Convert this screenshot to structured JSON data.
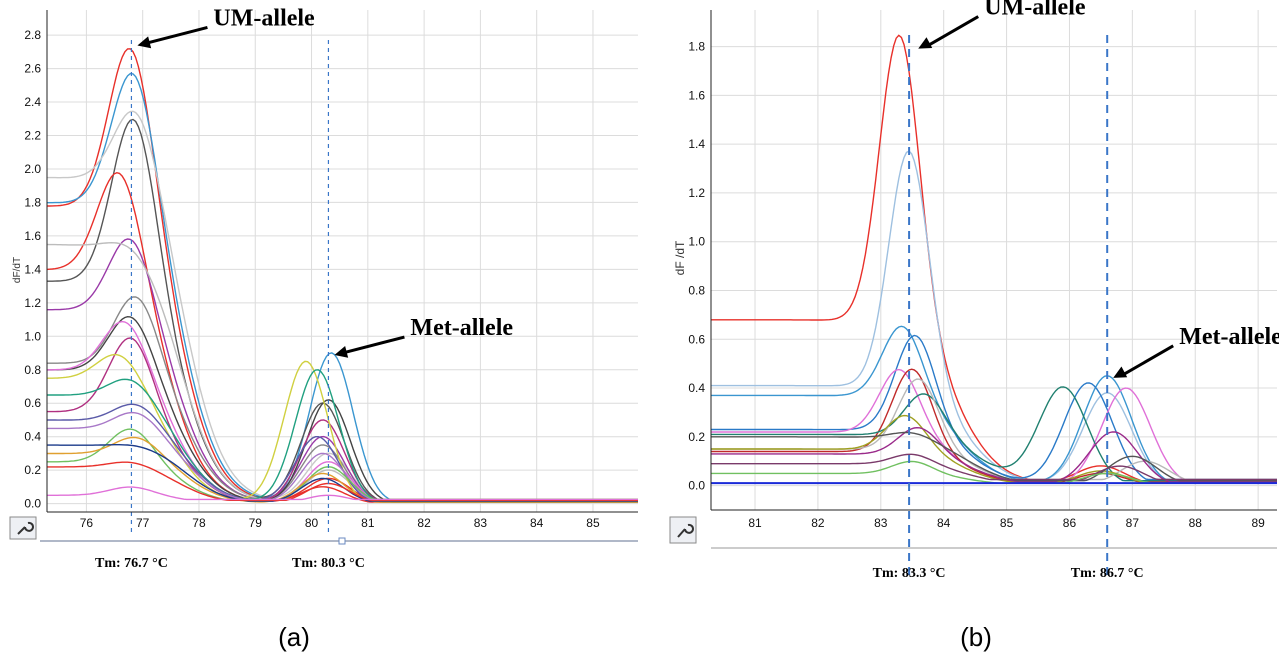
{
  "chart_data": [
    {
      "type": "line",
      "panel_label": "(a)",
      "ylabel": "dF/dT",
      "xlim": [
        75.3,
        85.8
      ],
      "ylim": [
        -0.05,
        2.95
      ],
      "xticks": [
        76,
        77,
        78,
        79,
        80,
        81,
        82,
        83,
        84,
        85
      ],
      "yticks": [
        0.0,
        0.2,
        0.4,
        0.6,
        0.8,
        1.0,
        1.2,
        1.4,
        1.6,
        1.8,
        2.0,
        2.2,
        2.4,
        2.6,
        2.8
      ],
      "grid": true,
      "annotations": [
        {
          "text": "UM-allele",
          "x": 76.8,
          "y": 2.75
        },
        {
          "text": "Met-allele",
          "x": 80.3,
          "y": 0.9
        }
      ],
      "tm_labels": [
        {
          "text": "Tm: 76.7 °C",
          "x": 76.8
        },
        {
          "text": "Tm: 80.3 °C",
          "x": 80.3
        }
      ],
      "series": [
        {
          "color": "#e8302a",
          "h1": 2.75,
          "c1": 76.8,
          "h2": 0.15,
          "c2": 80.3,
          "base": 1.78
        },
        {
          "color": "#3a96d0",
          "h1": 2.6,
          "c1": 76.85,
          "h2": 0.9,
          "c2": 80.35,
          "base": 1.8
        },
        {
          "color": "#c8c8c8",
          "h1": 2.37,
          "c1": 76.9,
          "h2": 0.3,
          "c2": 80.3,
          "base": 1.95
        },
        {
          "color": "#555555",
          "h1": 2.32,
          "c1": 76.85,
          "h2": 0.6,
          "c2": 80.2,
          "base": 1.33
        },
        {
          "color": "#e8302a",
          "h1": 2.0,
          "c1": 76.6,
          "h2": 0.1,
          "c2": 80.2,
          "base": 1.4
        },
        {
          "color": "#9a3aa8",
          "h1": 1.6,
          "c1": 76.8,
          "h2": 0.4,
          "c2": 80.2,
          "base": 1.16
        },
        {
          "color": "#bcbcbc",
          "h1": 1.55,
          "c1": 76.8,
          "h2": 0.2,
          "c2": 80.3,
          "base": 1.55
        },
        {
          "color": "#888888",
          "h1": 1.25,
          "c1": 76.9,
          "h2": 0.35,
          "c2": 80.2,
          "base": 0.84
        },
        {
          "color": "#444444",
          "h1": 1.13,
          "c1": 76.8,
          "h2": 0.62,
          "c2": 80.3,
          "base": 0.8
        },
        {
          "color": "#e070d8",
          "h1": 1.1,
          "c1": 76.7,
          "h2": 0.25,
          "c2": 80.3,
          "base": 0.8
        },
        {
          "color": "#b03080",
          "h1": 1.0,
          "c1": 76.8,
          "h2": 0.5,
          "c2": 80.2,
          "base": 0.55
        },
        {
          "color": "#d0d040",
          "h1": 0.9,
          "c1": 76.6,
          "h2": 0.85,
          "c2": 79.9,
          "base": 0.75
        },
        {
          "color": "#20a080",
          "h1": 0.75,
          "c1": 76.8,
          "h2": 0.8,
          "c2": 80.1,
          "base": 0.65
        },
        {
          "color": "#5a5aa8",
          "h1": 0.6,
          "c1": 76.9,
          "h2": 0.4,
          "c2": 80.1,
          "base": 0.5
        },
        {
          "color": "#a878c8",
          "h1": 0.55,
          "c1": 76.9,
          "h2": 0.3,
          "c2": 80.2,
          "base": 0.45
        },
        {
          "color": "#70c060",
          "h1": 0.45,
          "c1": 76.8,
          "h2": 0.22,
          "c2": 80.3,
          "base": 0.25
        },
        {
          "color": "#e0a030",
          "h1": 0.4,
          "c1": 76.9,
          "h2": 0.18,
          "c2": 80.2,
          "base": 0.3
        },
        {
          "color": "#1a3a8a",
          "h1": 0.35,
          "c1": 76.9,
          "h2": 0.15,
          "c2": 80.2,
          "base": 0.35
        },
        {
          "color": "#e8302a",
          "h1": 0.25,
          "c1": 76.8,
          "h2": 0.12,
          "c2": 80.3,
          "base": 0.22
        },
        {
          "color": "#e070d8",
          "h1": 0.1,
          "c1": 76.8,
          "h2": 0.05,
          "c2": 80.3,
          "base": 0.05
        }
      ]
    },
    {
      "type": "line",
      "panel_label": "(b)",
      "ylabel": "dF /dT",
      "xlim": [
        80.3,
        89.3
      ],
      "ylim": [
        -0.1,
        1.95
      ],
      "xticks": [
        81,
        82,
        83,
        84,
        85,
        86,
        87,
        88,
        89
      ],
      "yticks": [
        0.0,
        0.2,
        0.4,
        0.6,
        0.8,
        1.0,
        1.2,
        1.4,
        1.6,
        1.8
      ],
      "grid": true,
      "annotations": [
        {
          "text": "UM-allele",
          "x": 83.5,
          "y": 1.8
        },
        {
          "text": "Met-allele",
          "x": 86.6,
          "y": 0.45
        }
      ],
      "tm_labels": [
        {
          "text": "Tm: 83.3 °C",
          "x": 83.45
        },
        {
          "text": "Tm: 86.7 °C",
          "x": 86.6
        }
      ],
      "series": [
        {
          "color": "#e8302a",
          "h1": 1.86,
          "c1": 83.3,
          "h2": 0.08,
          "c2": 86.5,
          "base": 0.68
        },
        {
          "color": "#9ec0e0",
          "h1": 1.38,
          "c1": 83.45,
          "h2": 0.38,
          "c2": 86.6,
          "base": 0.41
        },
        {
          "color": "#3a96d0",
          "h1": 0.66,
          "c1": 83.35,
          "h2": 0.45,
          "c2": 86.6,
          "base": 0.37
        },
        {
          "color": "#2a7ac8",
          "h1": 0.62,
          "c1": 83.55,
          "h2": 0.42,
          "c2": 86.3,
          "base": 0.23
        },
        {
          "color": "#e070d8",
          "h1": 0.48,
          "c1": 83.3,
          "h2": 0.4,
          "c2": 86.9,
          "base": 0.22
        },
        {
          "color": "#c02a2a",
          "h1": 0.48,
          "c1": 83.5,
          "h2": 0.05,
          "c2": 86.5,
          "base": 0.14
        },
        {
          "color": "#208070",
          "h1": 0.38,
          "c1": 83.7,
          "h2": 0.4,
          "c2": 85.9,
          "base": 0.21
        },
        {
          "color": "#b8b8b8",
          "h1": 0.44,
          "c1": 83.6,
          "h2": 0.1,
          "c2": 87.2,
          "base": 0.15
        },
        {
          "color": "#a0a020",
          "h1": 0.29,
          "c1": 83.4,
          "h2": 0.06,
          "c2": 86.5,
          "base": 0.15
        },
        {
          "color": "#9a2a8a",
          "h1": 0.24,
          "c1": 83.6,
          "h2": 0.22,
          "c2": 86.7,
          "base": 0.13
        },
        {
          "color": "#555555",
          "h1": 0.22,
          "c1": 83.5,
          "h2": 0.12,
          "c2": 87.0,
          "base": 0.2
        },
        {
          "color": "#7a3a6a",
          "h1": 0.13,
          "c1": 83.5,
          "h2": 0.08,
          "c2": 86.8,
          "base": 0.09
        },
        {
          "color": "#70c060",
          "h1": 0.1,
          "c1": 83.5,
          "h2": 0.05,
          "c2": 86.6,
          "base": 0.05
        }
      ],
      "baseline": {
        "color": "#1a2ad8",
        "y": 0.01
      }
    }
  ]
}
